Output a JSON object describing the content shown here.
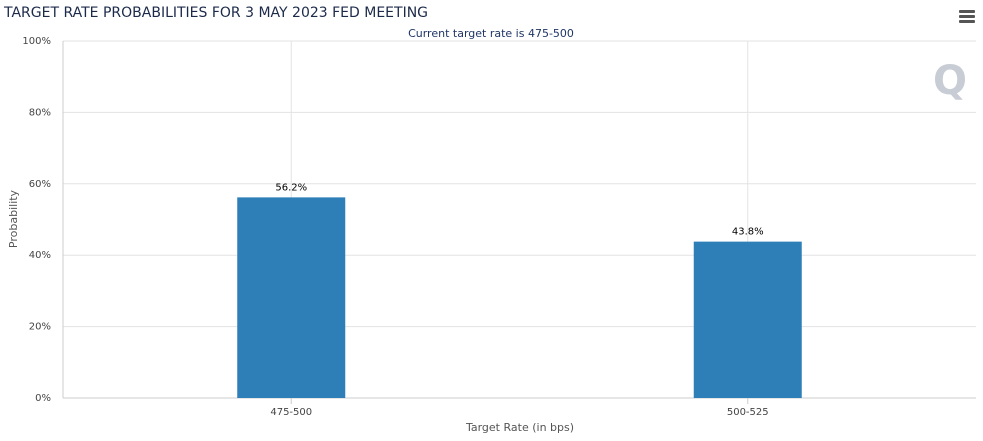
{
  "chart_data": {
    "type": "bar",
    "title": "TARGET RATE PROBABILITIES FOR 3 MAY 2023 FED MEETING",
    "subtitle": "Current target rate is 475-500",
    "x_label": "Target Rate (in bps)",
    "y_label": "Probability",
    "categories": [
      "475-500",
      "500-525"
    ],
    "values": [
      56.2,
      43.8
    ],
    "value_labels": [
      "56.2%",
      "43.8%"
    ],
    "color": "#2e7fb8",
    "ylim": [
      0,
      100
    ],
    "yticks": [
      {
        "value": 0,
        "label": "0%"
      },
      {
        "value": 20,
        "label": "20%"
      },
      {
        "value": 40,
        "label": "40%"
      },
      {
        "value": 60,
        "label": "60%"
      },
      {
        "value": 80,
        "label": "80%"
      },
      {
        "value": 100,
        "label": "100%"
      }
    ],
    "grid": true
  }
}
